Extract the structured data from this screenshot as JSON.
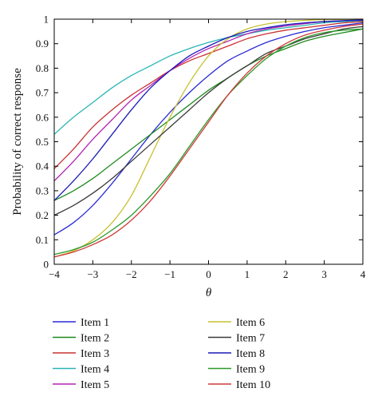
{
  "chart_data": {
    "type": "line",
    "title": "",
    "xlabel": "θ",
    "ylabel": "Probability of correct response",
    "xlim": [
      -4,
      4
    ],
    "ylim": [
      0,
      1
    ],
    "x_ticks": [
      "−4",
      "−3",
      "−2",
      "−1",
      "0",
      "1",
      "2",
      "3",
      "4"
    ],
    "y_ticks": [
      "0",
      "0.1",
      "0.2",
      "0.3",
      "0.4",
      "0.5",
      "0.6",
      "0.7",
      "0.8",
      "0.9",
      "1"
    ],
    "grid": false,
    "legend_position": "bottom",
    "x": [
      -4,
      -3.5,
      -3,
      -2.5,
      -2,
      -1.5,
      -1,
      -0.5,
      0,
      0.5,
      1,
      1.5,
      2,
      2.5,
      3,
      3.5,
      4
    ],
    "series": [
      {
        "name": "Item 1",
        "color": "#2b2bd6",
        "values": [
          0.12,
          0.17,
          0.24,
          0.33,
          0.43,
          0.53,
          0.62,
          0.7,
          0.77,
          0.83,
          0.87,
          0.905,
          0.93,
          0.95,
          0.965,
          0.975,
          0.985
        ]
      },
      {
        "name": "Item 2",
        "color": "#1e8a1e",
        "values": [
          0.26,
          0.3,
          0.35,
          0.41,
          0.47,
          0.53,
          0.59,
          0.65,
          0.71,
          0.76,
          0.81,
          0.85,
          0.88,
          0.91,
          0.93,
          0.945,
          0.96
        ]
      },
      {
        "name": "Item 3",
        "color": "#c83232",
        "values": [
          0.39,
          0.47,
          0.56,
          0.63,
          0.69,
          0.74,
          0.79,
          0.83,
          0.86,
          0.89,
          0.92,
          0.94,
          0.955,
          0.965,
          0.975,
          0.985,
          0.99
        ]
      },
      {
        "name": "Item 4",
        "color": "#2ab5b5",
        "values": [
          0.53,
          0.6,
          0.66,
          0.72,
          0.77,
          0.81,
          0.85,
          0.88,
          0.905,
          0.925,
          0.94,
          0.955,
          0.965,
          0.975,
          0.985,
          0.99,
          0.995
        ]
      },
      {
        "name": "Item 5",
        "color": "#b224b2",
        "values": [
          0.34,
          0.42,
          0.51,
          0.59,
          0.67,
          0.73,
          0.79,
          0.84,
          0.88,
          0.91,
          0.94,
          0.96,
          0.972,
          0.982,
          0.99,
          0.994,
          0.997
        ]
      },
      {
        "name": "Item 6",
        "color": "#c8c030",
        "values": [
          0.03,
          0.055,
          0.1,
          0.17,
          0.28,
          0.44,
          0.6,
          0.74,
          0.85,
          0.92,
          0.96,
          0.98,
          0.99,
          0.995,
          0.998,
          0.999,
          1.0
        ]
      },
      {
        "name": "Item 7",
        "color": "#3a3a3a",
        "values": [
          0.2,
          0.24,
          0.29,
          0.35,
          0.42,
          0.49,
          0.56,
          0.63,
          0.7,
          0.76,
          0.81,
          0.86,
          0.89,
          0.92,
          0.94,
          0.96,
          0.97
        ]
      },
      {
        "name": "Item 8",
        "color": "#1a1ab8",
        "values": [
          0.26,
          0.34,
          0.43,
          0.53,
          0.63,
          0.72,
          0.79,
          0.85,
          0.89,
          0.925,
          0.95,
          0.965,
          0.977,
          0.985,
          0.99,
          0.994,
          0.996
        ]
      },
      {
        "name": "Item 9",
        "color": "#2a9a2a",
        "values": [
          0.04,
          0.06,
          0.09,
          0.14,
          0.2,
          0.28,
          0.37,
          0.48,
          0.59,
          0.69,
          0.77,
          0.84,
          0.89,
          0.925,
          0.945,
          0.955,
          0.96
        ]
      },
      {
        "name": "Item 10",
        "color": "#d23a3a",
        "values": [
          0.03,
          0.05,
          0.08,
          0.12,
          0.18,
          0.26,
          0.36,
          0.47,
          0.58,
          0.69,
          0.78,
          0.85,
          0.9,
          0.935,
          0.955,
          0.97,
          0.98
        ]
      }
    ]
  }
}
